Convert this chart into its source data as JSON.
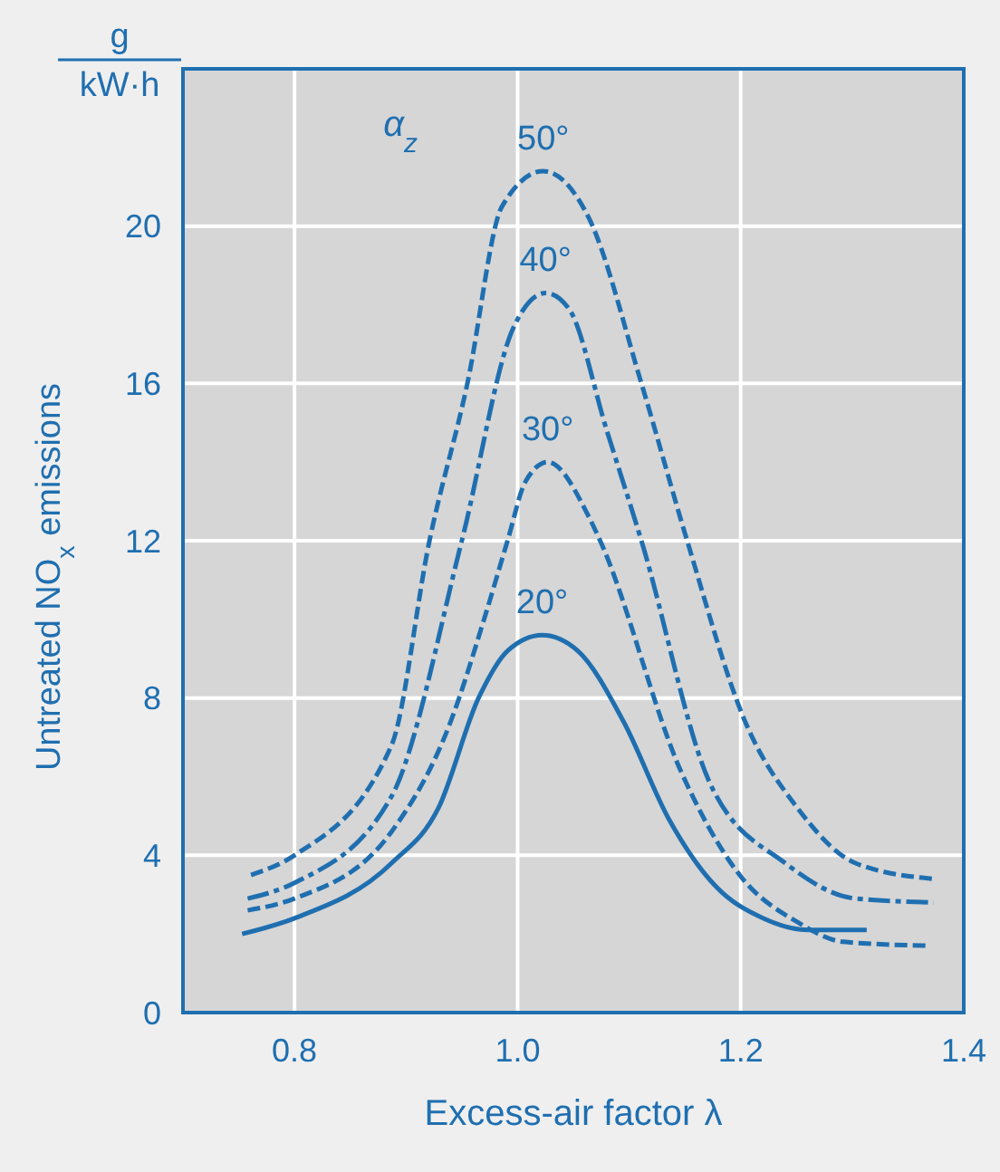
{
  "chart_data": {
    "type": "line",
    "xlabel": "Excess-air factor λ",
    "ylabel": "Untreated NO$_{x}$ emissions",
    "annotations": [
      "α$_{z}$",
      "g",
      "kW·h"
    ],
    "xlim": [
      0.7,
      1.4
    ],
    "ylim": [
      0,
      24
    ],
    "xticks": [
      0.8,
      {
        "value": 1.0,
        "label": "1.0"
      },
      1.2,
      1.4
    ],
    "yticks": [
      0,
      4,
      8,
      12,
      16,
      20
    ],
    "grid": true,
    "legend": false,
    "marker": "none",
    "series": [
      {
        "name": "20°",
        "color": "#1f6fb0",
        "line_style": "solid",
        "x": [
          0.753,
          0.8,
          0.887,
          0.929,
          0.965,
          0.991,
          1.022,
          1.054,
          1.095,
          1.136,
          1.178,
          1.22,
          1.261,
          1.313
        ],
        "values": [
          2.0,
          2.4,
          3.8,
          5.2,
          8.0,
          9.2,
          9.6,
          9.2,
          7.4,
          4.9,
          3.2,
          2.4,
          2.1,
          2.1
        ]
      },
      {
        "name": "30°",
        "color": "#1f6fb0",
        "line_style": "dashed",
        "x": [
          0.758,
          0.8,
          0.887,
          0.94,
          0.971,
          0.991,
          1.007,
          1.027,
          1.064,
          1.074,
          1.147,
          1.199,
          1.251,
          1.292,
          1.37
        ],
        "values": [
          2.6,
          2.9,
          4.6,
          7.4,
          10.1,
          12.0,
          13.5,
          14.0,
          12.6,
          12.0,
          6.1,
          3.5,
          2.3,
          1.8,
          1.7
        ]
      },
      {
        "name": "40°",
        "color": "#1f6fb0",
        "line_style": "dashdot",
        "x": [
          0.758,
          0.8,
          0.887,
          0.95,
          0.996,
          1.025,
          1.046,
          1.08,
          1.111,
          1.173,
          1.24,
          1.303,
          1.373
        ],
        "values": [
          2.9,
          3.3,
          5.5,
          12.0,
          17.4,
          18.3,
          17.9,
          14.8,
          12.0,
          5.8,
          3.8,
          2.9,
          2.8
        ]
      },
      {
        "name": "50°",
        "color": "#1f6fb0",
        "line_style": "dashed",
        "x": [
          0.761,
          0.8,
          0.887,
          0.921,
          0.955,
          0.986,
          1.023,
          1.064,
          1.111,
          1.152,
          1.204,
          1.251,
          1.303,
          1.373
        ],
        "values": [
          3.5,
          4.0,
          6.8,
          12.0,
          16.0,
          20.5,
          21.4,
          20.2,
          16.0,
          12.0,
          7.4,
          5.2,
          3.8,
          3.4
        ]
      }
    ]
  }
}
